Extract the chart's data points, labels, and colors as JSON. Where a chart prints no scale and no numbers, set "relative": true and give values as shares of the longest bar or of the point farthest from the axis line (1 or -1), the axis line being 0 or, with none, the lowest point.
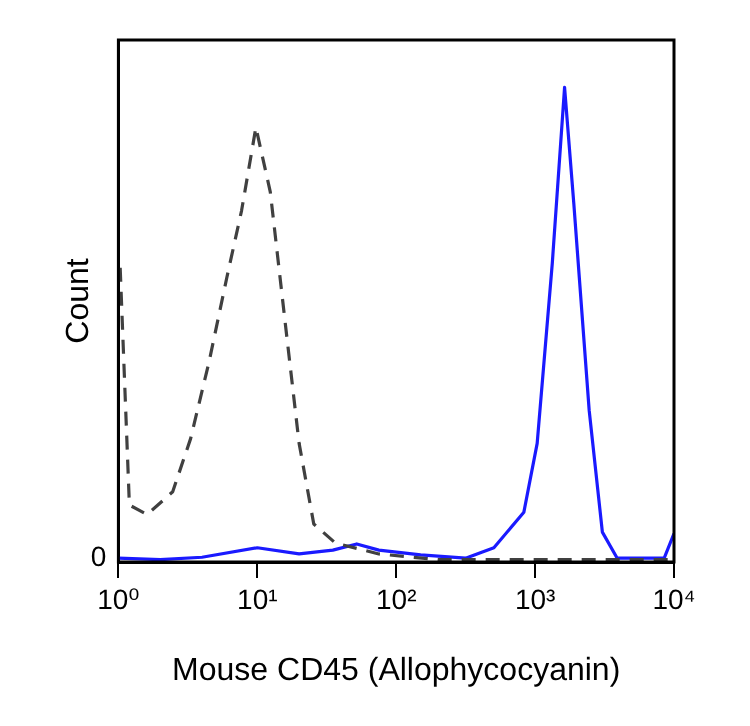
{
  "chart_data": {
    "type": "line",
    "xlabel": "Mouse CD45 (Allophycocyanin)",
    "ylabel": "Count",
    "relative": true,
    "log": "x",
    "grid": false,
    "legend": false,
    "marker": "none",
    "xlim": [
      1,
      10000
    ],
    "xticks": [
      {
        "value": 1,
        "label": "10⁰"
      },
      {
        "value": 10,
        "label": "10¹"
      },
      {
        "value": 100,
        "label": "10²"
      },
      {
        "value": 1000,
        "label": "10³"
      },
      {
        "value": 10000,
        "label": "10⁴"
      }
    ],
    "annotations": [
      "0"
    ],
    "series": [
      {
        "color": "#404040",
        "line_style": "dashed",
        "x": [
          1.03,
          1.2,
          1.61,
          2.46,
          3.31,
          4.48,
          6.04,
          7.7,
          9.77,
          12.4,
          15.8,
          20,
          25.5,
          36.5,
          75,
          200,
          1000,
          3000,
          10000
        ],
        "values": [
          0.62,
          0.12,
          0.1,
          0.148,
          0.26,
          0.42,
          0.6,
          0.74,
          0.916,
          0.78,
          0.51,
          0.25,
          0.08,
          0.04,
          0.017,
          0.005,
          0.005,
          0.005,
          0.005
        ]
      },
      {
        "color": "#1a1aff",
        "line_style": "solid",
        "x": [
          1,
          2,
          4,
          10,
          20,
          35,
          52,
          75,
          150,
          316,
          505,
          830,
          1035,
          1330,
          1630,
          1900,
          2450,
          3050,
          3900,
          8500,
          10000
        ],
        "values": [
          0.008,
          0.005,
          0.01,
          0.03,
          0.017,
          0.025,
          0.038,
          0.025,
          0.015,
          0.008,
          0.03,
          0.105,
          0.25,
          0.63,
          1,
          0.755,
          0.32,
          0.063,
          0.008,
          0.008,
          0.06
        ]
      }
    ]
  }
}
